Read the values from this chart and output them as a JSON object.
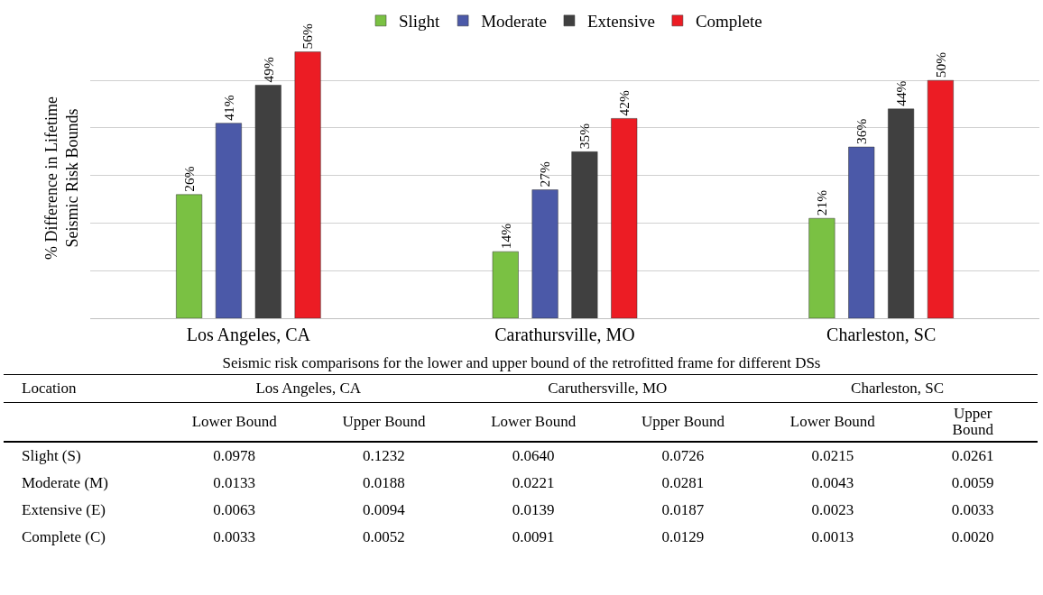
{
  "chart_data": [
    {
      "type": "bar",
      "ylabel": "% Difference in Lifetime\nSeismic Risk Bounds",
      "categories": [
        "Los Angeles, CA",
        "Carathursville, MO",
        "Charleston, SC"
      ],
      "series": [
        {
          "name": "Slight",
          "color": "#7ac143",
          "values": [
            26,
            14,
            21
          ],
          "value_labels": [
            "26%",
            "14%",
            "21%"
          ]
        },
        {
          "name": "Moderate",
          "color": "#4b59a8",
          "values": [
            41,
            27,
            36
          ],
          "value_labels": [
            "41%",
            "27%",
            "36%"
          ]
        },
        {
          "name": "Extensive",
          "color": "#404040",
          "values": [
            49,
            35,
            44
          ],
          "value_labels": [
            "49%",
            "35%",
            "44%"
          ]
        },
        {
          "name": "Complete",
          "color": "#ec1c24",
          "values": [
            56,
            42,
            50
          ],
          "value_labels": [
            "56%",
            "42%",
            "50%"
          ]
        }
      ],
      "yticks": [
        {
          "value": 0,
          "label": null
        },
        {
          "value": 10,
          "label": null
        },
        {
          "value": 20,
          "label": null
        },
        {
          "value": 30,
          "label": null
        },
        {
          "value": 40,
          "label": null
        },
        {
          "value": 50,
          "label": null
        }
      ],
      "tick_labels": "x",
      "grid": "y",
      "legend": "top"
    },
    {
      "type": "heatmap",
      "title": "Seismic risk comparisons for the lower and upper bound of the retrofitted frame for different DSs",
      "annotations": [
        "Location",
        "Los Angeles, CA",
        "Caruthersville, MO",
        "Charleston, SC"
      ],
      "categories": [
        "Lower Bound",
        "Upper Bound",
        "Lower Bound",
        "Upper Bound",
        "Lower Bound",
        "Upper Bound"
      ],
      "y_categories": [
        "Slight (S)",
        "Moderate (M)",
        "Extensive (E)",
        "Complete (C)"
      ],
      "cells": [
        [
          0.0978,
          0.1232,
          0.064,
          0.0726,
          0.0215,
          0.0261
        ],
        [
          0.0133,
          0.0188,
          0.0221,
          0.0281,
          0.0043,
          0.0059
        ],
        [
          0.0063,
          0.0094,
          0.0139,
          0.0187,
          0.0023,
          0.0033
        ],
        [
          0.0033,
          0.0052,
          0.0091,
          0.0129,
          0.0013,
          0.002
        ]
      ],
      "cell_labels": [
        [
          "0.0978",
          "0.1232",
          "0.0640",
          "0.0726",
          "0.0215",
          "0.0261"
        ],
        [
          "0.0133",
          "0.0188",
          "0.0221",
          "0.0281",
          "0.0043",
          "0.0059"
        ],
        [
          "0.0063",
          "0.0094",
          "0.0139",
          "0.0187",
          "0.0023",
          "0.0033"
        ],
        [
          "0.0033",
          "0.0052",
          "0.0091",
          "0.0129",
          "0.0013",
          "0.0020"
        ]
      ]
    }
  ]
}
